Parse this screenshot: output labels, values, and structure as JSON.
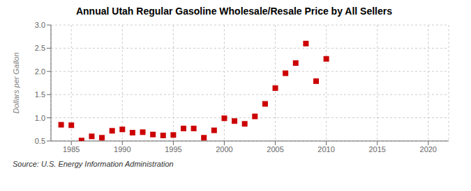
{
  "chart_data": {
    "type": "scatter",
    "title": "Annual Utah Regular Gasoline Wholesale/Resale Price by All Sellers",
    "ylabel": "Dollars per Gallon",
    "annotations": [
      "Source: U.S. Energy Information Administration"
    ],
    "x": [
      1984,
      1985,
      1986,
      1987,
      1988,
      1989,
      1990,
      1991,
      1992,
      1993,
      1994,
      1995,
      1996,
      1997,
      1998,
      1999,
      2000,
      2001,
      2002,
      2003,
      2004,
      2005,
      2006,
      2007,
      2008,
      2009,
      2010
    ],
    "values": [
      0.85,
      0.84,
      0.51,
      0.6,
      0.57,
      0.72,
      0.75,
      0.68,
      0.69,
      0.64,
      0.62,
      0.63,
      0.77,
      0.77,
      0.57,
      0.73,
      0.99,
      0.93,
      0.87,
      1.03,
      1.3,
      1.64,
      1.96,
      2.18,
      2.6,
      1.79,
      2.27
    ],
    "color": "#cc0000",
    "marker": "square",
    "xlim": [
      1983,
      2022
    ],
    "xticks": [
      1985,
      1990,
      1995,
      2000,
      2005,
      2010,
      2015,
      2020
    ],
    "ylim": [
      0.5,
      3.0
    ],
    "yticks": [
      0.5,
      {
        "value": 1,
        "label": "1.0"
      },
      1.5,
      {
        "value": 2,
        "label": "2.0"
      },
      2.5,
      {
        "value": 3,
        "label": "3.0"
      }
    ],
    "grid": true
  }
}
